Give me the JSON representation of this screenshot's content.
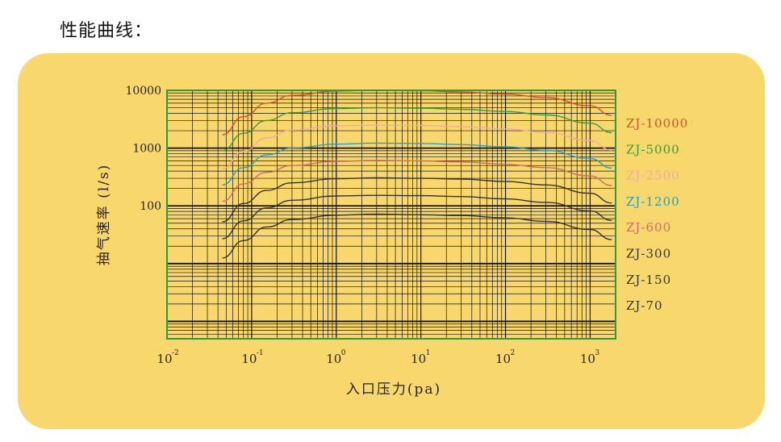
{
  "heading": "性能曲线：",
  "chart_data": {
    "type": "line",
    "title": "",
    "xlabel": "入口压力(pa)",
    "ylabel": "抽气速率 (l/s)",
    "x_scale": "log",
    "y_scale": "log",
    "xlim": [
      0.01,
      2000
    ],
    "ylim": [
      0.5,
      10000
    ],
    "x_ticks": [
      {
        "base": "10",
        "exp": "-2",
        "value": 0.01
      },
      {
        "base": "10",
        "exp": "-1",
        "value": 0.1
      },
      {
        "base": "10",
        "exp": "0",
        "value": 1
      },
      {
        "base": "10",
        "exp": "1",
        "value": 10
      },
      {
        "base": "10",
        "exp": "2",
        "value": 100
      },
      {
        "base": "10",
        "exp": "3",
        "value": 1000
      }
    ],
    "y_ticks": [
      {
        "label": "10000",
        "value": 10000
      },
      {
        "label": "1000",
        "value": 1000
      },
      {
        "label": "100",
        "value": 100
      }
    ],
    "grid": true,
    "legend": "right, labels at line ends",
    "x": [
      0.045,
      0.08,
      0.15,
      0.3,
      1,
      3,
      10,
      30,
      100,
      300,
      1000,
      1800
    ],
    "series": [
      {
        "name": "ZJ-10000",
        "color": "#d5502a",
        "values": [
          1700,
          3500,
          6000,
          8200,
          9700,
          10000,
          9800,
          9400,
          8600,
          7500,
          5400,
          3700
        ]
      },
      {
        "name": "ZJ-5000",
        "color": "#3a9a3a",
        "values": [
          900,
          1800,
          3000,
          4100,
          4850,
          5000,
          4900,
          4700,
          4300,
          3750,
          2700,
          1850
        ]
      },
      {
        "name": "ZJ-2500",
        "color": "#f6a8a8",
        "values": [
          440,
          880,
          1500,
          2050,
          2420,
          2500,
          2450,
          2350,
          2150,
          1870,
          1350,
          920
        ]
      },
      {
        "name": "ZJ-1200",
        "color": "#2aa0b8",
        "values": [
          230,
          460,
          760,
          1000,
          1170,
          1220,
          1200,
          1150,
          1050,
          910,
          660,
          450
        ]
      },
      {
        "name": "ZJ-600",
        "color": "#cf6a6a",
        "values": [
          120,
          240,
          380,
          500,
          590,
          610,
          600,
          575,
          525,
          460,
          330,
          225
        ]
      },
      {
        "name": "ZJ-300",
        "color": "#333333",
        "values": [
          53,
          110,
          185,
          250,
          295,
          305,
          300,
          290,
          265,
          230,
          165,
          112
        ]
      },
      {
        "name": "ZJ-150",
        "color": "#333333",
        "values": [
          27,
          55,
          92,
          125,
          148,
          152,
          150,
          145,
          132,
          115,
          82,
          56
        ]
      },
      {
        "name": "ZJ-70",
        "color": "#333333",
        "values": [
          12.5,
          25,
          43,
          58,
          69,
          72,
          70,
          68,
          62,
          54,
          39,
          26
        ]
      }
    ],
    "colors": {
      "panel_background": "#f8d86d",
      "grid_line": "#111111",
      "frame": "#2e9a3a"
    }
  }
}
